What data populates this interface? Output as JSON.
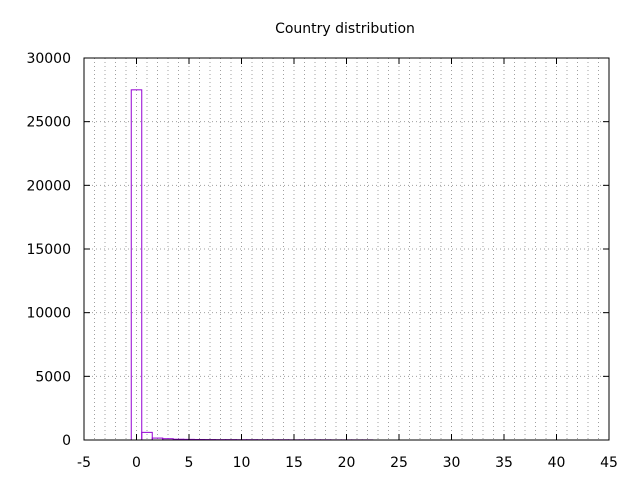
{
  "chart_data": {
    "type": "bar",
    "title": "Country distribution",
    "xlabel": "",
    "ylabel": "",
    "xlim": [
      -5,
      45
    ],
    "ylim": [
      0,
      30000
    ],
    "x_ticks": [
      -5,
      0,
      5,
      10,
      15,
      20,
      25,
      30,
      35,
      40,
      45
    ],
    "y_ticks": [
      0,
      5000,
      10000,
      15000,
      20000,
      25000,
      30000
    ],
    "x_minor_step": 1,
    "grid": true,
    "bar_width": 1,
    "color": "#9400d3",
    "bars": [
      {
        "x": 0,
        "value": 27500
      },
      {
        "x": 1,
        "value": 600
      },
      {
        "x": 2,
        "value": 150
      },
      {
        "x": 3,
        "value": 100
      },
      {
        "x": 4,
        "value": 60
      },
      {
        "x": 5,
        "value": 50
      },
      {
        "x": 6,
        "value": 40
      },
      {
        "x": 7,
        "value": 35
      },
      {
        "x": 8,
        "value": 30
      },
      {
        "x": 9,
        "value": 30
      },
      {
        "x": 10,
        "value": 25
      },
      {
        "x": 11,
        "value": 25
      },
      {
        "x": 12,
        "value": 20
      },
      {
        "x": 13,
        "value": 20
      },
      {
        "x": 14,
        "value": 20
      },
      {
        "x": 15,
        "value": 15
      },
      {
        "x": 16,
        "value": 15
      },
      {
        "x": 17,
        "value": 15
      },
      {
        "x": 18,
        "value": 15
      },
      {
        "x": 19,
        "value": 10
      },
      {
        "x": 20,
        "value": 10
      },
      {
        "x": 21,
        "value": 10
      },
      {
        "x": 22,
        "value": 10
      }
    ]
  }
}
